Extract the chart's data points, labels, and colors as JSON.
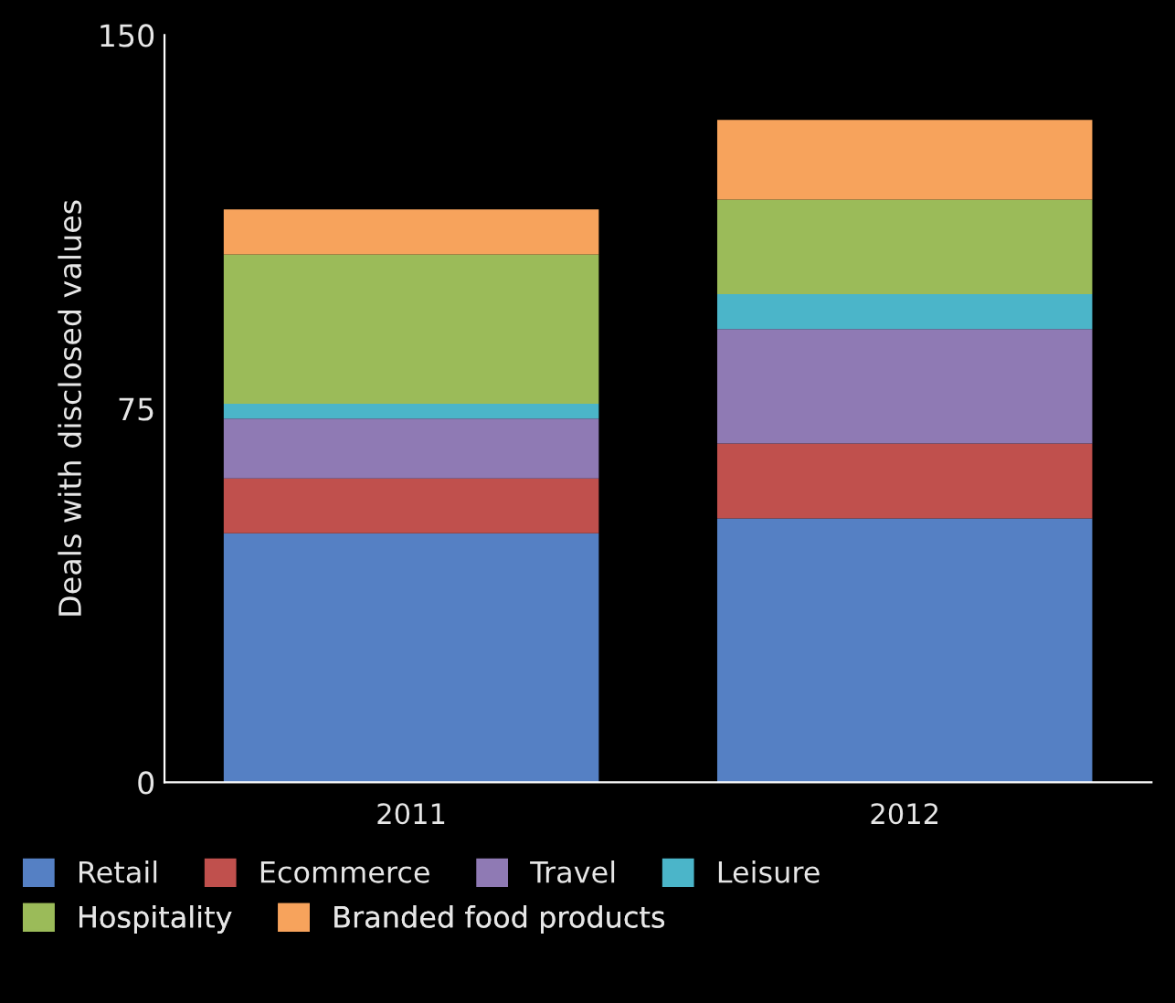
{
  "chart_data": {
    "type": "bar",
    "stacked": true,
    "ylabel": "Deals with disclosed values",
    "categories": [
      "2011",
      "2012"
    ],
    "series": [
      {
        "name": "Retail",
        "color": "#5580c4",
        "values": [
          50,
          53
        ]
      },
      {
        "name": "Ecommerce",
        "color": "#c0504d",
        "values": [
          11,
          15
        ]
      },
      {
        "name": "Travel",
        "color": "#8f7ab4",
        "values": [
          12,
          23
        ]
      },
      {
        "name": "Leisure",
        "color": "#4bb5c9",
        "values": [
          3,
          7
        ]
      },
      {
        "name": "Hospitality",
        "color": "#9bbb59",
        "values": [
          30,
          19
        ]
      },
      {
        "name": "Branded food products",
        "color": "#f7a35c",
        "values": [
          9,
          16
        ]
      }
    ],
    "ylim": [
      0,
      150
    ],
    "yticks": [
      0,
      75,
      150
    ],
    "grid": false,
    "legend": "bottom"
  }
}
